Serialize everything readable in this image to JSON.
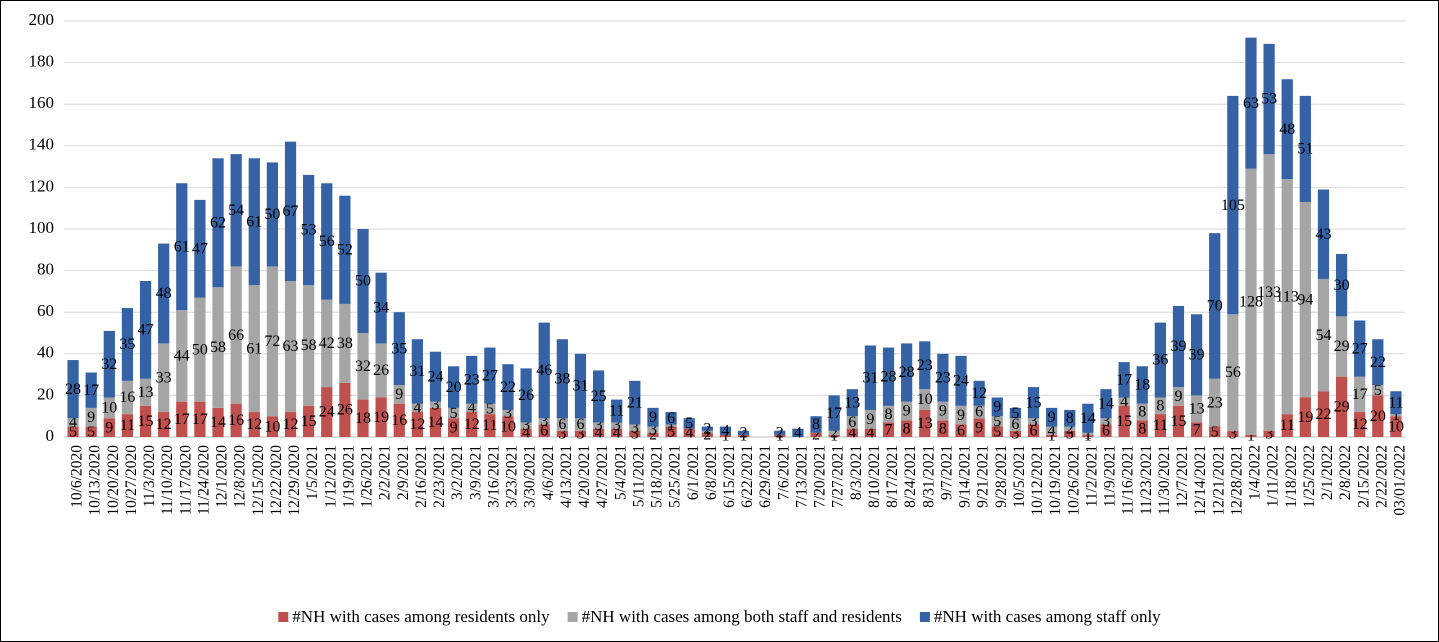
{
  "chart_data": {
    "type": "stacked_bar",
    "categories": [
      "10/6/2020",
      "10/13/2020",
      "10/20/2020",
      "10/27/2020",
      "11/3/2020",
      "11/10/2020",
      "11/17/2020",
      "11/24/2020",
      "12/1/2020",
      "12/8/2020",
      "12/15/2020",
      "12/22/2020",
      "12/29/2020",
      "1/5/2021",
      "1/12/2021",
      "1/19/2021",
      "1/26/2021",
      "2/2/2021",
      "2/9/2021",
      "2/16/2021",
      "2/23/2021",
      "3/2/2021",
      "3/9/2021",
      "3/16/2021",
      "3/23/2021",
      "3/30/2021",
      "4/6/2021",
      "4/13/2021",
      "4/20/2021",
      "4/27/2021",
      "5/4/2021",
      "5/11/2021",
      "5/18/2021",
      "5/25/2021",
      "6/1/2021",
      "6/8/2021",
      "6/15/2021",
      "6/22/2021",
      "6/29/2021",
      "7/6/2021",
      "7/13/2021",
      "7/20/2021",
      "7/27/2021",
      "8/3/2021",
      "8/10/2021",
      "8/17/2021",
      "8/24/2021",
      "8/31/2021",
      "9/7/2021",
      "9/14/2021",
      "9/21/2021",
      "9/28/2021",
      "10/5/2021",
      "10/12/2021",
      "10/19/2021",
      "10/26/2021",
      "11/2/2021",
      "11/9/2021",
      "11/16/2021",
      "11/23/2021",
      "11/30/2021",
      "12/7/2021",
      "12/14/2021",
      "12/21/2021",
      "12/28/2021",
      "1/4/2022",
      "1/11/2022",
      "1/18/2022",
      "1/25/2022",
      "2/1/2022",
      "2/8/2022",
      "2/15/2022",
      "2/22/2022",
      "03/01/2022"
    ],
    "series": [
      {
        "name": "#NH with cases among residents only",
        "color": "#c0504d",
        "values": [
          5,
          5,
          9,
          11,
          15,
          12,
          17,
          17,
          14,
          16,
          12,
          10,
          12,
          15,
          24,
          26,
          18,
          19,
          16,
          12,
          14,
          9,
          12,
          11,
          10,
          4,
          6,
          3,
          3,
          4,
          4,
          3,
          2,
          5,
          4,
          2,
          1,
          1,
          0,
          1,
          0,
          2,
          1,
          4,
          4,
          7,
          8,
          13,
          8,
          6,
          9,
          5,
          3,
          6,
          1,
          3,
          1,
          6,
          15,
          8,
          11,
          15,
          7,
          5,
          3,
          1,
          3,
          11,
          19,
          22,
          29,
          12,
          20,
          10
        ]
      },
      {
        "name": "#NH with cases among both staff and residents",
        "color": "#a5a5a5",
        "values": [
          4,
          9,
          10,
          16,
          13,
          33,
          44,
          50,
          58,
          66,
          61,
          72,
          63,
          58,
          42,
          38,
          32,
          26,
          9,
          4,
          3,
          5,
          4,
          5,
          3,
          3,
          3,
          6,
          6,
          3,
          3,
          3,
          3,
          1,
          0,
          1,
          0,
          0,
          0,
          0,
          0,
          0,
          2,
          6,
          9,
          8,
          9,
          10,
          9,
          9,
          6,
          5,
          6,
          3,
          4,
          2,
          1,
          3,
          4,
          8,
          8,
          9,
          13,
          23,
          56,
          128,
          133,
          113,
          94,
          54,
          29,
          17,
          5,
          1
        ]
      },
      {
        "name": "#NH with cases among staff only",
        "color": "#3562a4",
        "values": [
          28,
          17,
          32,
          35,
          47,
          48,
          61,
          47,
          62,
          54,
          61,
          50,
          67,
          53,
          56,
          52,
          50,
          34,
          35,
          31,
          24,
          20,
          23,
          27,
          22,
          26,
          46,
          38,
          31,
          25,
          11,
          21,
          9,
          6,
          5,
          2,
          4,
          2,
          0,
          2,
          4,
          8,
          17,
          13,
          31,
          28,
          28,
          23,
          23,
          24,
          12,
          9,
          5,
          15,
          9,
          8,
          14,
          14,
          17,
          18,
          36,
          39,
          39,
          70,
          105,
          63,
          53,
          48,
          51,
          43,
          30,
          27,
          22,
          11
        ]
      }
    ],
    "ylim": [
      0,
      200
    ],
    "yticks": [
      0,
      20,
      40,
      60,
      80,
      100,
      120,
      140,
      160,
      180,
      200
    ],
    "grid": true,
    "legend": "bottom"
  }
}
